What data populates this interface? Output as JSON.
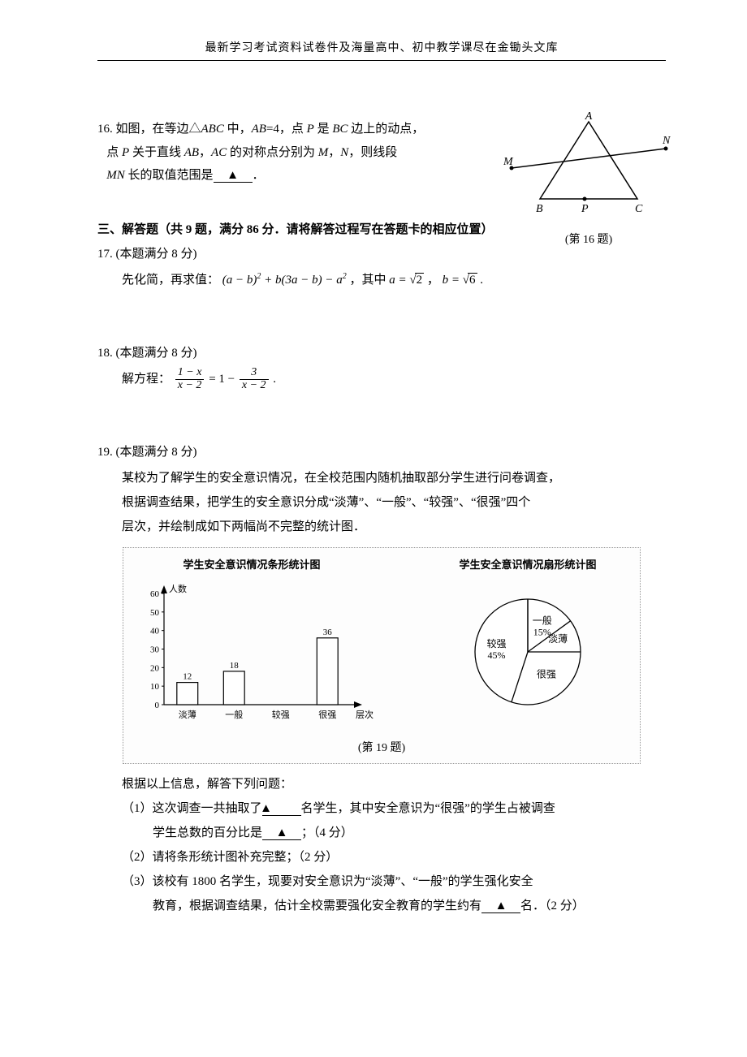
{
  "header": "最新学习考试资料试卷件及海量高中、初中教学课尽在金锄头文库",
  "q16": {
    "num": "16.",
    "line1_a": "如图，在等边△",
    "abc": "ABC",
    "line1_b": " 中，",
    "ab_eq": "AB",
    "eq4": "=4，点 ",
    "p": "P",
    "is": " 是 ",
    "bc": "BC",
    "line1_c": " 边上的动点，",
    "line2_a": "点 ",
    "line2_b": " 关于直线 ",
    "ab": "AB",
    "comma": "，",
    "ac": "AC",
    "line2_c": " 的对称点分别为 ",
    "m": "M",
    "n": "N",
    "line2_d": "，则线段",
    "line3_a": "",
    "mn": "MN",
    "line3_b": " 长的取值范围是",
    "blank": "▲",
    "period": "．",
    "caption": "(第 16 题)",
    "labels": {
      "A": "A",
      "B": "B",
      "C": "C",
      "P": "P",
      "M": "M",
      "N": "N"
    }
  },
  "section3": "三、解答题（共 9 题，满分 86 分．请将解答过程写在答题卡的相应位置）",
  "q17": {
    "head": "17.  (本题满分 8 分)",
    "pre": "先化简，再求值：",
    "expr_a": "(a − b)",
    "sq": "2",
    "expr_b": " + b(3a − b) − a",
    "where": "，其中 ",
    "a_eq": "a = ",
    "sqrt2": "2",
    "b_eq": "b = ",
    "sqrt6": "6",
    "comma": " ，",
    "end": " ."
  },
  "q18": {
    "head": "18.  (本题满分 8 分)",
    "pre": "解方程：",
    "f1n": "1 − x",
    "f1d": "x − 2",
    "mid": " = 1 − ",
    "f2n": "3",
    "f2d": "x − 2",
    "end": " ."
  },
  "q19": {
    "head": "19.  (本题满分 8 分)",
    "p1": "某校为了解学生的安全意识情况，在全校范围内随机抽取部分学生进行问卷调查，",
    "p2": "根据调查结果，把学生的安全意识分成“淡薄”、“一般”、“较强”、“很强”四个",
    "p3": "层次，并绘制成如下两幅尚不完整的统计图．",
    "bar": {
      "title": "学生安全意识情况条形统计图",
      "ylabel": "人数",
      "xlabel": "层次",
      "categories": [
        "淡薄",
        "一般",
        "较强",
        "很强"
      ],
      "values": [
        12,
        18,
        null,
        36
      ],
      "value_labels": [
        "12",
        "18",
        "",
        "36"
      ],
      "yticks": [
        0,
        10,
        20,
        30,
        40,
        50,
        60
      ],
      "ylim": [
        0,
        60
      ],
      "bar_fill": "#ffffff",
      "bar_stroke": "#000000",
      "axis_color": "#000000",
      "font_size": 11
    },
    "pie": {
      "title": "学生安全意识情况扇形统计图",
      "slices": [
        {
          "label": "一般",
          "pct": "15%",
          "angle_deg": 54,
          "fill": "#ffffff"
        },
        {
          "label": "淡薄",
          "pct": "",
          "angle_deg": 36,
          "fill": "#ffffff"
        },
        {
          "label": "很强",
          "pct": "",
          "angle_deg": 108,
          "fill": "#ffffff"
        },
        {
          "label": "较强",
          "pct": "45%",
          "angle_deg": 162,
          "fill": "#ffffff"
        }
      ],
      "stroke": "#000000",
      "bg": "#ffffff"
    },
    "caption": "(第 19 题)",
    "after": "根据以上信息，解答下列问题：",
    "s1a": "（1）这次调查一共抽取了",
    "s1b": "名学生，其中安全意识为“很强”的学生占被调查",
    "s1c": "学生总数的百分比是",
    "s1d": "；（4 分）",
    "s2": "（2）请将条形统计图补充完整；（2 分）",
    "s3a": "（3）该校有 1800 名学生，现要对安全意识为“淡薄”、“一般”的学生强化安全",
    "s3b": "教育，根据调查结果，估计全校需要强化安全教育的学生约有",
    "s3c": "名．（2 分）",
    "blank": "▲"
  }
}
